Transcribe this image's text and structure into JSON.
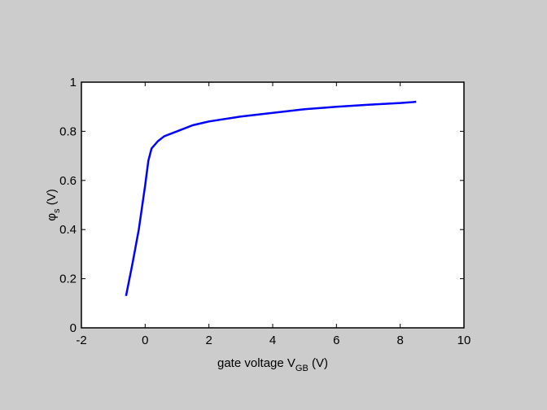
{
  "chart_data": {
    "type": "line",
    "xlabel": {
      "text": "gate voltage V",
      "sub": "GB",
      "suffix": " (V)"
    },
    "ylabel": {
      "text": "φ",
      "sub": "s",
      "suffix": " (V)"
    },
    "x": [
      -0.6,
      -0.4,
      -0.2,
      0,
      0.1,
      0.2,
      0.4,
      0.6,
      1,
      1.5,
      2,
      3,
      4,
      5,
      6,
      7,
      8,
      8.5
    ],
    "values": [
      0.13,
      0.26,
      0.4,
      0.58,
      0.68,
      0.73,
      0.76,
      0.78,
      0.8,
      0.825,
      0.84,
      0.86,
      0.875,
      0.89,
      0.9,
      0.908,
      0.915,
      0.92
    ],
    "color": "#0000ff",
    "xlim": [
      -2,
      10
    ],
    "xticks": [
      -2,
      0,
      2,
      4,
      6,
      8,
      10
    ],
    "ylim": [
      0,
      1
    ],
    "yticks": [
      0,
      0.2,
      0.4,
      0.6,
      0.8,
      1
    ],
    "grid": false
  }
}
